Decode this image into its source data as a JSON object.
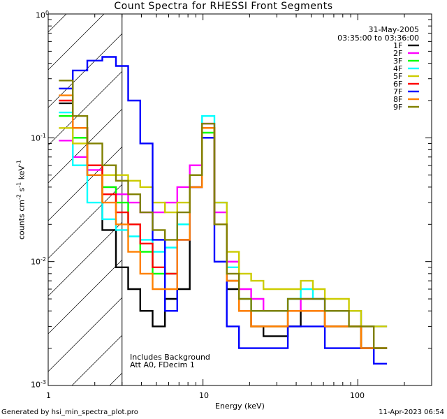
{
  "chart_data": {
    "type": "line",
    "title": "Count Spectra for RHESSI Front Segments",
    "xlabel": "Energy (keV)",
    "ylabel_parts": [
      "counts cm",
      "-2",
      " s",
      "-1",
      " keV",
      "-1"
    ],
    "xscale": "log",
    "yscale": "log",
    "xlim": [
      1,
      300
    ],
    "ylim": [
      0.001,
      1
    ],
    "x_tick_labels": [
      {
        "value": 1,
        "label": "1"
      },
      {
        "value": 10,
        "label": "10"
      },
      {
        "value": 100,
        "label": "100"
      }
    ],
    "y_tick_labels": [
      {
        "value": 1,
        "base": "10",
        "exp": "0"
      },
      {
        "value": 0.1,
        "base": "10",
        "exp": "-1"
      },
      {
        "value": 0.01,
        "base": "10",
        "exp": "-2"
      },
      {
        "value": 0.001,
        "base": "10",
        "exp": "-3"
      }
    ],
    "date": "31-May-2005",
    "time_range": "03:35:00 to 03:36:00",
    "annotation_lines": [
      "Includes Background",
      "Att A0, FDecim 1"
    ],
    "hatched_region": {
      "x_from": 1,
      "x_to": 3
    },
    "legend_position": "top-right",
    "series": [
      {
        "name": "1F",
        "color": "#000000",
        "values": [
          0.19,
          0.12,
          0.05,
          0.018,
          0.009,
          0.006,
          0.004,
          0.003,
          0.005,
          0.006,
          0.04,
          0.12,
          0.02,
          0.006,
          0.004,
          0.003,
          0.0025,
          0.0025,
          0.003,
          0.004,
          0.004,
          0.003,
          0.003,
          0.003,
          0.002,
          0.002
        ]
      },
      {
        "name": "2F",
        "color": "#ff00ff",
        "values": [
          0.095,
          0.07,
          0.055,
          0.04,
          0.035,
          0.03,
          0.025,
          0.025,
          0.03,
          0.04,
          0.06,
          0.13,
          0.025,
          0.01,
          0.006,
          0.005,
          0.004,
          0.004,
          0.004,
          0.005,
          0.005,
          0.004,
          0.004,
          0.004,
          0.003,
          0.003
        ]
      },
      {
        "name": "3F",
        "color": "#00ff00",
        "values": [
          0.15,
          0.1,
          0.06,
          0.04,
          0.03,
          0.02,
          0.012,
          0.008,
          0.008,
          0.02,
          0.05,
          0.11,
          0.02,
          0.007,
          0.004,
          0.003,
          0.003,
          0.003,
          0.004,
          0.004,
          0.004,
          0.003,
          0.003,
          0.003,
          0.002,
          0.002
        ]
      },
      {
        "name": "4F",
        "color": "#00ffff",
        "values": [
          0.16,
          0.06,
          0.03,
          0.022,
          0.018,
          0.016,
          0.015,
          0.012,
          0.013,
          0.02,
          0.05,
          0.15,
          0.03,
          0.009,
          0.005,
          0.004,
          0.004,
          0.004,
          0.005,
          0.006,
          0.005,
          0.004,
          0.004,
          0.004,
          0.003,
          0.003
        ]
      },
      {
        "name": "5F",
        "color": "#cccc00",
        "values": [
          0.12,
          0.09,
          0.06,
          0.05,
          0.05,
          0.045,
          0.04,
          0.03,
          0.025,
          0.03,
          0.05,
          0.12,
          0.03,
          0.012,
          0.008,
          0.007,
          0.006,
          0.006,
          0.006,
          0.007,
          0.006,
          0.005,
          0.005,
          0.004,
          0.003,
          0.003
        ]
      },
      {
        "name": "6F",
        "color": "#ff0000",
        "values": [
          0.2,
          0.12,
          0.06,
          0.035,
          0.025,
          0.02,
          0.014,
          0.009,
          0.008,
          0.015,
          0.04,
          0.12,
          0.02,
          0.007,
          0.004,
          0.003,
          0.003,
          0.003,
          0.004,
          0.004,
          0.004,
          0.003,
          0.003,
          0.003,
          0.002,
          0.002
        ]
      },
      {
        "name": "7F",
        "color": "#0000ff",
        "values": [
          0.25,
          0.35,
          0.42,
          0.45,
          0.38,
          0.2,
          0.09,
          0.015,
          0.004,
          0.015,
          0.04,
          0.1,
          0.01,
          0.003,
          0.002,
          0.002,
          0.002,
          0.002,
          0.003,
          0.003,
          0.003,
          0.002,
          0.002,
          0.002,
          0.002,
          0.0015
        ]
      },
      {
        "name": "8F",
        "color": "#ff8000",
        "values": [
          0.22,
          0.12,
          0.05,
          0.03,
          0.02,
          0.012,
          0.008,
          0.006,
          0.006,
          0.015,
          0.04,
          0.12,
          0.02,
          0.007,
          0.004,
          0.003,
          0.003,
          0.003,
          0.004,
          0.004,
          0.004,
          0.003,
          0.003,
          0.003,
          0.002,
          0.002
        ]
      },
      {
        "name": "9F",
        "color": "#808000",
        "values": [
          0.29,
          0.15,
          0.09,
          0.06,
          0.045,
          0.035,
          0.025,
          0.018,
          0.015,
          0.025,
          0.05,
          0.13,
          0.02,
          0.008,
          0.005,
          0.004,
          0.004,
          0.004,
          0.005,
          0.005,
          0.005,
          0.004,
          0.004,
          0.003,
          0.003,
          0.002
        ]
      }
    ],
    "x": [
      1.3,
      1.6,
      2.0,
      2.5,
      3.0,
      3.6,
      4.3,
      5.2,
      6.2,
      7.5,
      9.0,
      10.8,
      13,
      15.6,
      18.7,
      22.4,
      27,
      32,
      39,
      47,
      56,
      67,
      80,
      96,
      115,
      140
    ]
  },
  "footer": {
    "generated_by": "Generated by hsi_min_spectra_plot.pro",
    "timestamp": "11-Apr-2023 06:54"
  }
}
